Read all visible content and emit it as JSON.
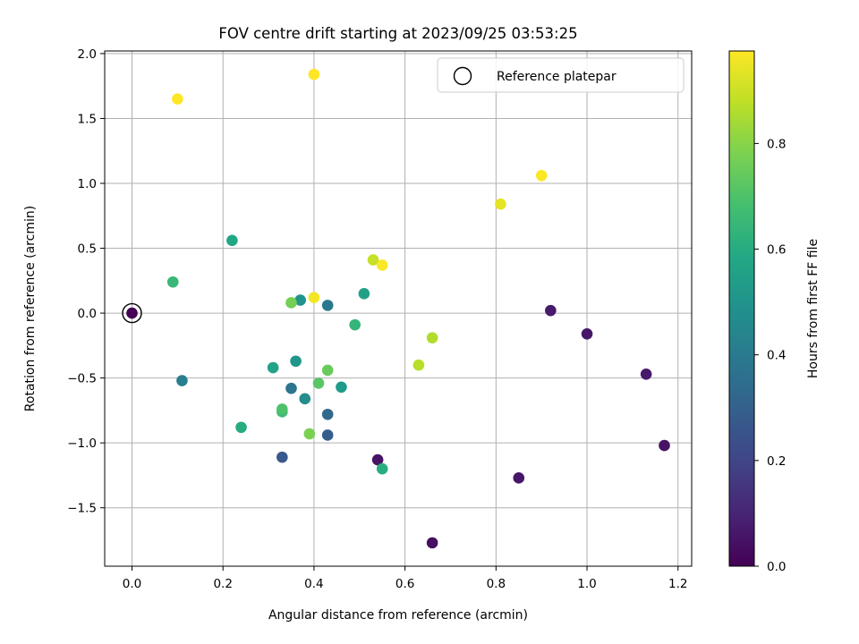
{
  "chart_data": {
    "type": "scatter",
    "title": "FOV centre drift starting at 2023/09/25 03:53:25",
    "xlabel": "Angular distance from reference (arcmin)",
    "ylabel": "Rotation from reference (arcmin)",
    "xlim": [
      -0.06,
      1.23
    ],
    "ylim": [
      -1.95,
      2.02
    ],
    "xticks": [
      0.0,
      0.2,
      0.4,
      0.6,
      0.8,
      1.0,
      1.2
    ],
    "xtick_labels": [
      "0.0",
      "0.2",
      "0.4",
      "0.6",
      "0.8",
      "1.0",
      "1.2"
    ],
    "yticks": [
      -1.5,
      -1.0,
      -0.5,
      0.0,
      0.5,
      1.0,
      1.5,
      2.0
    ],
    "ytick_labels": [
      "−1.5",
      "−1.0",
      "−0.5",
      "0.0",
      "0.5",
      "1.0",
      "1.5",
      "2.0"
    ],
    "grid": true,
    "colormap": "viridis",
    "colorbar": {
      "label": "Hours from first FF file",
      "range": [
        0.0,
        0.975
      ],
      "ticks": [
        0.0,
        0.2,
        0.4,
        0.6,
        0.8
      ],
      "tick_labels": [
        "0.0",
        "0.2",
        "0.4",
        "0.6",
        "0.8"
      ]
    },
    "legend": {
      "position": "top-right",
      "entries": [
        {
          "label": "Reference platepar",
          "marker": "hollow-circle"
        }
      ]
    },
    "reference_point": {
      "x": 0.0,
      "y": 0.0
    },
    "points": [
      {
        "x": 0.0,
        "y": 0.0,
        "hours": 0.0
      },
      {
        "x": 0.66,
        "y": -1.77,
        "hours": 0.04
      },
      {
        "x": 0.54,
        "y": -1.13,
        "hours": 0.05
      },
      {
        "x": 0.85,
        "y": -1.27,
        "hours": 0.06
      },
      {
        "x": 0.92,
        "y": 0.02,
        "hours": 0.07
      },
      {
        "x": 1.0,
        "y": -0.16,
        "hours": 0.06
      },
      {
        "x": 1.13,
        "y": -0.47,
        "hours": 0.07
      },
      {
        "x": 1.17,
        "y": -1.02,
        "hours": 0.05
      },
      {
        "x": 0.33,
        "y": -1.11,
        "hours": 0.27
      },
      {
        "x": 0.43,
        "y": -0.94,
        "hours": 0.29
      },
      {
        "x": 0.43,
        "y": -0.78,
        "hours": 0.33
      },
      {
        "x": 0.35,
        "y": -0.58,
        "hours": 0.38
      },
      {
        "x": 0.43,
        "y": 0.06,
        "hours": 0.39
      },
      {
        "x": 0.11,
        "y": -0.52,
        "hours": 0.41
      },
      {
        "x": 0.38,
        "y": -0.66,
        "hours": 0.47
      },
      {
        "x": 0.37,
        "y": 0.1,
        "hours": 0.5
      },
      {
        "x": 0.36,
        "y": -0.37,
        "hours": 0.51
      },
      {
        "x": 0.46,
        "y": -0.57,
        "hours": 0.53
      },
      {
        "x": 0.51,
        "y": 0.15,
        "hours": 0.55
      },
      {
        "x": 0.31,
        "y": -0.42,
        "hours": 0.56
      },
      {
        "x": 0.22,
        "y": 0.56,
        "hours": 0.58
      },
      {
        "x": 0.24,
        "y": -0.88,
        "hours": 0.6
      },
      {
        "x": 0.55,
        "y": -1.2,
        "hours": 0.61
      },
      {
        "x": 0.49,
        "y": -0.09,
        "hours": 0.64
      },
      {
        "x": 0.09,
        "y": 0.24,
        "hours": 0.65
      },
      {
        "x": 0.33,
        "y": -0.76,
        "hours": 0.66
      },
      {
        "x": 0.33,
        "y": -0.74,
        "hours": 0.7
      },
      {
        "x": 0.41,
        "y": -0.54,
        "hours": 0.72
      },
      {
        "x": 0.43,
        "y": -0.44,
        "hours": 0.75
      },
      {
        "x": 0.35,
        "y": 0.08,
        "hours": 0.77
      },
      {
        "x": 0.39,
        "y": -0.93,
        "hours": 0.78
      },
      {
        "x": 0.66,
        "y": -0.19,
        "hours": 0.86
      },
      {
        "x": 0.63,
        "y": -0.4,
        "hours": 0.87
      },
      {
        "x": 0.53,
        "y": 0.41,
        "hours": 0.89
      },
      {
        "x": 0.81,
        "y": 0.84,
        "hours": 0.94
      },
      {
        "x": 0.4,
        "y": 0.12,
        "hours": 0.96
      },
      {
        "x": 0.55,
        "y": 0.37,
        "hours": 0.97
      },
      {
        "x": 0.9,
        "y": 1.06,
        "hours": 0.97
      },
      {
        "x": 0.1,
        "y": 1.65,
        "hours": 0.975
      },
      {
        "x": 0.4,
        "y": 1.84,
        "hours": 0.975
      }
    ]
  }
}
